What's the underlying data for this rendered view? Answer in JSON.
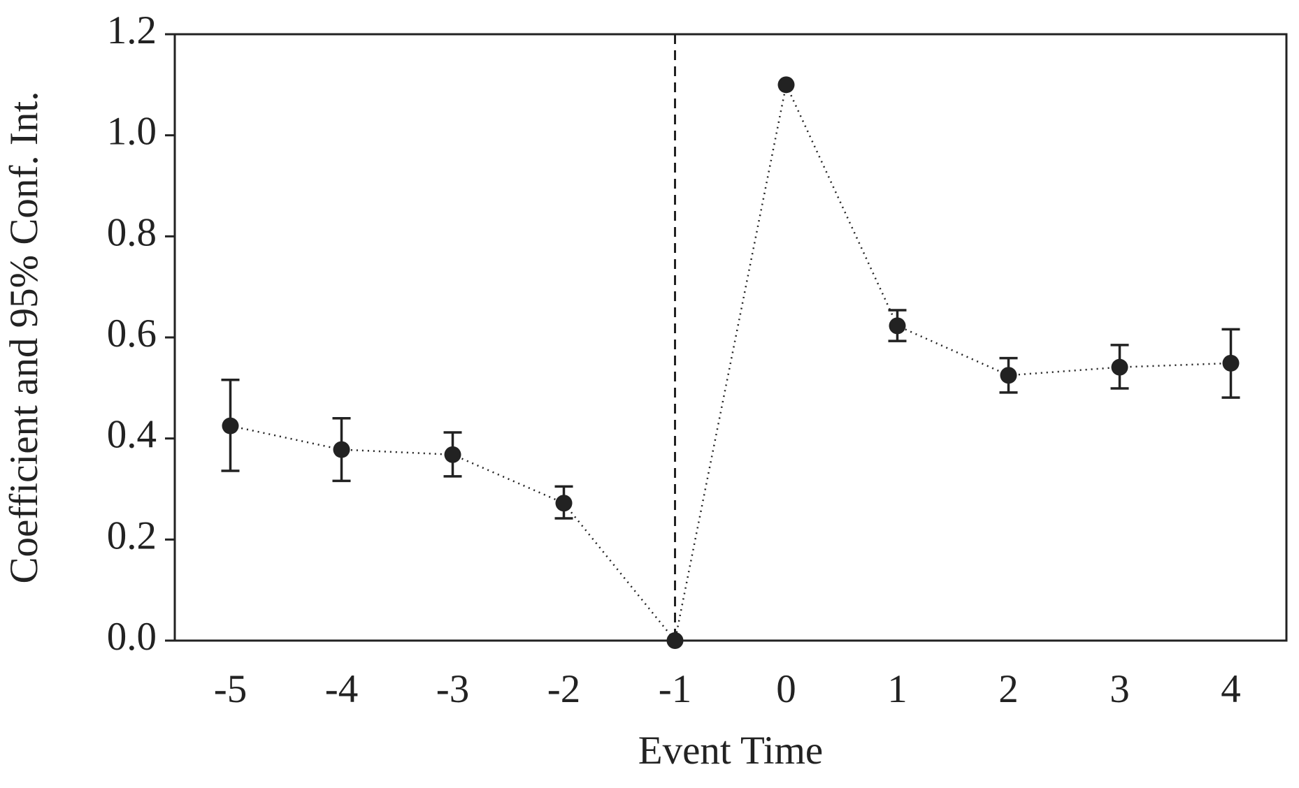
{
  "chart_data": {
    "type": "errorbar",
    "xlabel": "Event Time",
    "ylabel": "Coefficient and 95% Conf. Int.",
    "x": [
      -5,
      -4,
      -3,
      -2,
      -1,
      0,
      1,
      2,
      3,
      4
    ],
    "series": [
      {
        "color": "#222222",
        "values": [
          0.425,
          0.378,
          0.368,
          0.272,
          0,
          1.1,
          0.623,
          0.525,
          0.541,
          0.549
        ],
        "ci_low": [
          0.336,
          0.316,
          0.325,
          0.242,
          null,
          null,
          0.593,
          0.491,
          0.499,
          0.481
        ],
        "ci_high": [
          0.516,
          0.44,
          0.412,
          0.305,
          null,
          null,
          0.654,
          0.559,
          0.585,
          0.616
        ]
      }
    ],
    "xlim": [
      -5.5,
      4.5
    ],
    "xticks": [
      -5,
      -4,
      -3,
      -2,
      -1,
      0,
      1,
      2,
      3,
      4
    ],
    "ylim": [
      0,
      1.2
    ],
    "yticks": [
      {
        "value": 0,
        "label": "0.0"
      },
      {
        "value": 0.2,
        "label": "0.2"
      },
      {
        "value": 0.4,
        "label": "0.4"
      },
      {
        "value": 0.6,
        "label": "0.6"
      },
      {
        "value": 0.8,
        "label": "0.8"
      },
      {
        "value": 1.0,
        "label": "1.0"
      },
      {
        "value": 1.2,
        "label": "1.2"
      }
    ],
    "reference_line_x": -1,
    "line_style": "dotted"
  }
}
